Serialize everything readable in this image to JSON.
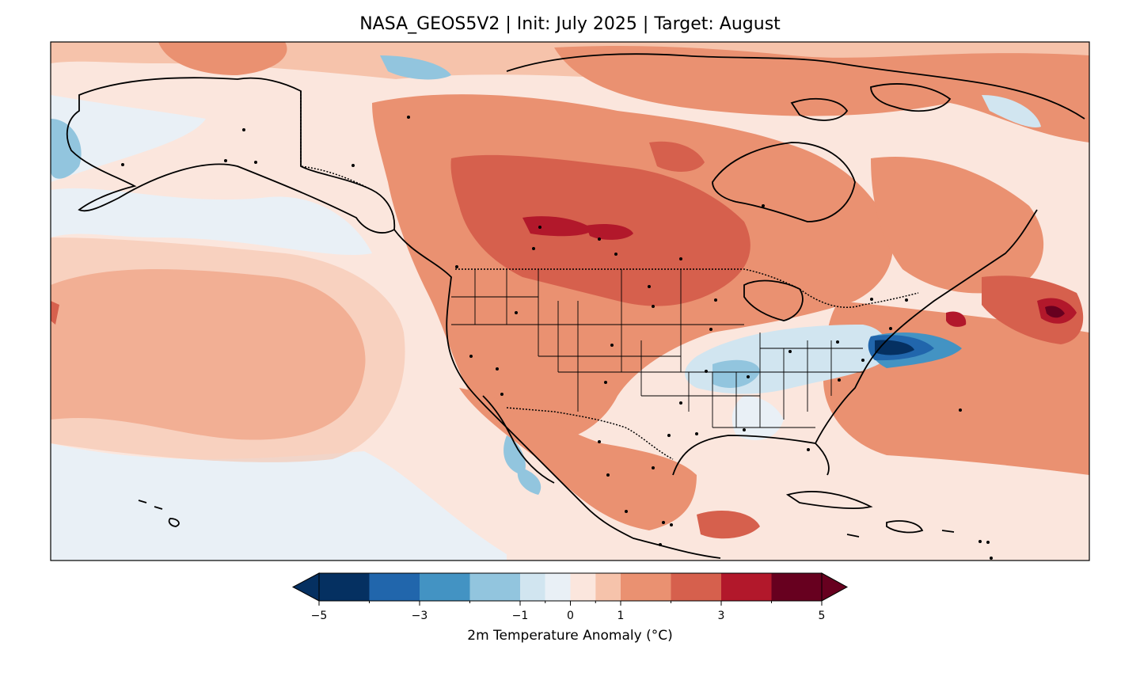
{
  "title": "NASA_GEOS5V2 | Init: July 2025 | Target: August",
  "colorbar": {
    "label": "2m Temperature Anomaly (°C)",
    "ticks": [
      "−5",
      "−3",
      "−1",
      "0",
      "1",
      "3",
      "5"
    ],
    "bins": [
      -5,
      -4,
      -3,
      -2,
      -1,
      -0.5,
      0,
      0.5,
      1,
      2,
      3,
      4,
      5
    ],
    "colors": [
      "#053061",
      "#2166ac",
      "#4393c3",
      "#92c5de",
      "#d1e5f0",
      "#e9f0f6",
      "#fbe6dd",
      "#f6c3ab",
      "#ea9171",
      "#d6604d",
      "#b2182b",
      "#67001f"
    ],
    "extend": "both"
  },
  "map": {
    "region": "North America",
    "variable": "2m Temperature Anomaly",
    "units": "°C"
  }
}
